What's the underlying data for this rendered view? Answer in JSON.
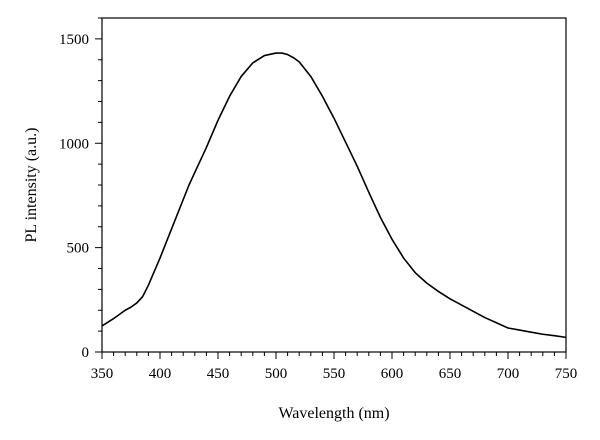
{
  "chart_data": {
    "type": "line",
    "title": "",
    "xlabel": "Wavelength (nm)",
    "ylabel": "PL intensity (a.u.)",
    "xlim": [
      350,
      750
    ],
    "ylim": [
      0,
      1600
    ],
    "xticks": [
      350,
      400,
      450,
      500,
      550,
      600,
      650,
      700,
      750
    ],
    "yticks": [
      0,
      500,
      1000,
      1500
    ],
    "x_minor_step": 10,
    "y_minor_step": 100,
    "grid": false,
    "legend": "none",
    "series": [
      {
        "color": "#000000",
        "x": [
          350,
          360,
          370,
          375,
          380,
          385,
          390,
          400,
          410,
          420,
          425,
          430,
          440,
          450,
          460,
          470,
          480,
          490,
          500,
          505,
          510,
          515,
          520,
          530,
          540,
          550,
          560,
          570,
          580,
          590,
          600,
          610,
          620,
          630,
          640,
          650,
          660,
          670,
          680,
          690,
          700,
          710,
          720,
          730,
          740,
          750
        ],
        "y": [
          125,
          160,
          200,
          215,
          235,
          265,
          320,
          450,
          590,
          730,
          800,
          860,
          980,
          1110,
          1225,
          1320,
          1385,
          1420,
          1432,
          1432,
          1425,
          1410,
          1390,
          1320,
          1225,
          1120,
          1005,
          890,
          765,
          645,
          540,
          450,
          380,
          330,
          290,
          255,
          225,
          195,
          165,
          140,
          115,
          105,
          95,
          85,
          78,
          70
        ]
      }
    ]
  }
}
